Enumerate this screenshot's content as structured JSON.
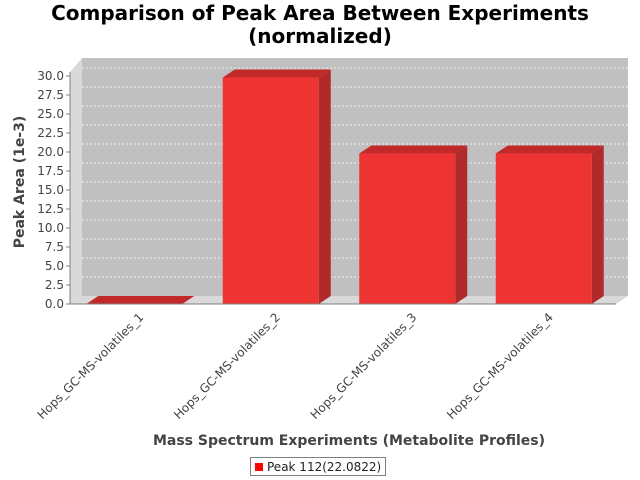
{
  "chart_data": {
    "type": "bar",
    "title_line1": "Comparison of Peak Area Between Experiments",
    "title_line2": "(normalized)",
    "xlabel": "Mass Spectrum Experiments (Metabolite Profiles)",
    "ylabel": "Peak Area (1e-3)",
    "categories": [
      "Hops_GC-MS-volatiles_1",
      "Hops_GC-MS-volatiles_2",
      "Hops_GC-MS-volatiles_3",
      "Hops_GC-MS-volatiles_4"
    ],
    "values": [
      0.0,
      29.8,
      19.8,
      19.8
    ],
    "ylim": [
      0,
      30.0
    ],
    "yticks": [
      "0.0",
      "2.5",
      "5.0",
      "7.5",
      "10.0",
      "12.5",
      "15.0",
      "17.5",
      "20.0",
      "22.5",
      "25.0",
      "27.5",
      "30.0"
    ],
    "legend": [
      {
        "name": "Peak 112(22.0822)",
        "color": "#ff0000"
      }
    ],
    "grid": true,
    "legend_position": "bottom"
  }
}
